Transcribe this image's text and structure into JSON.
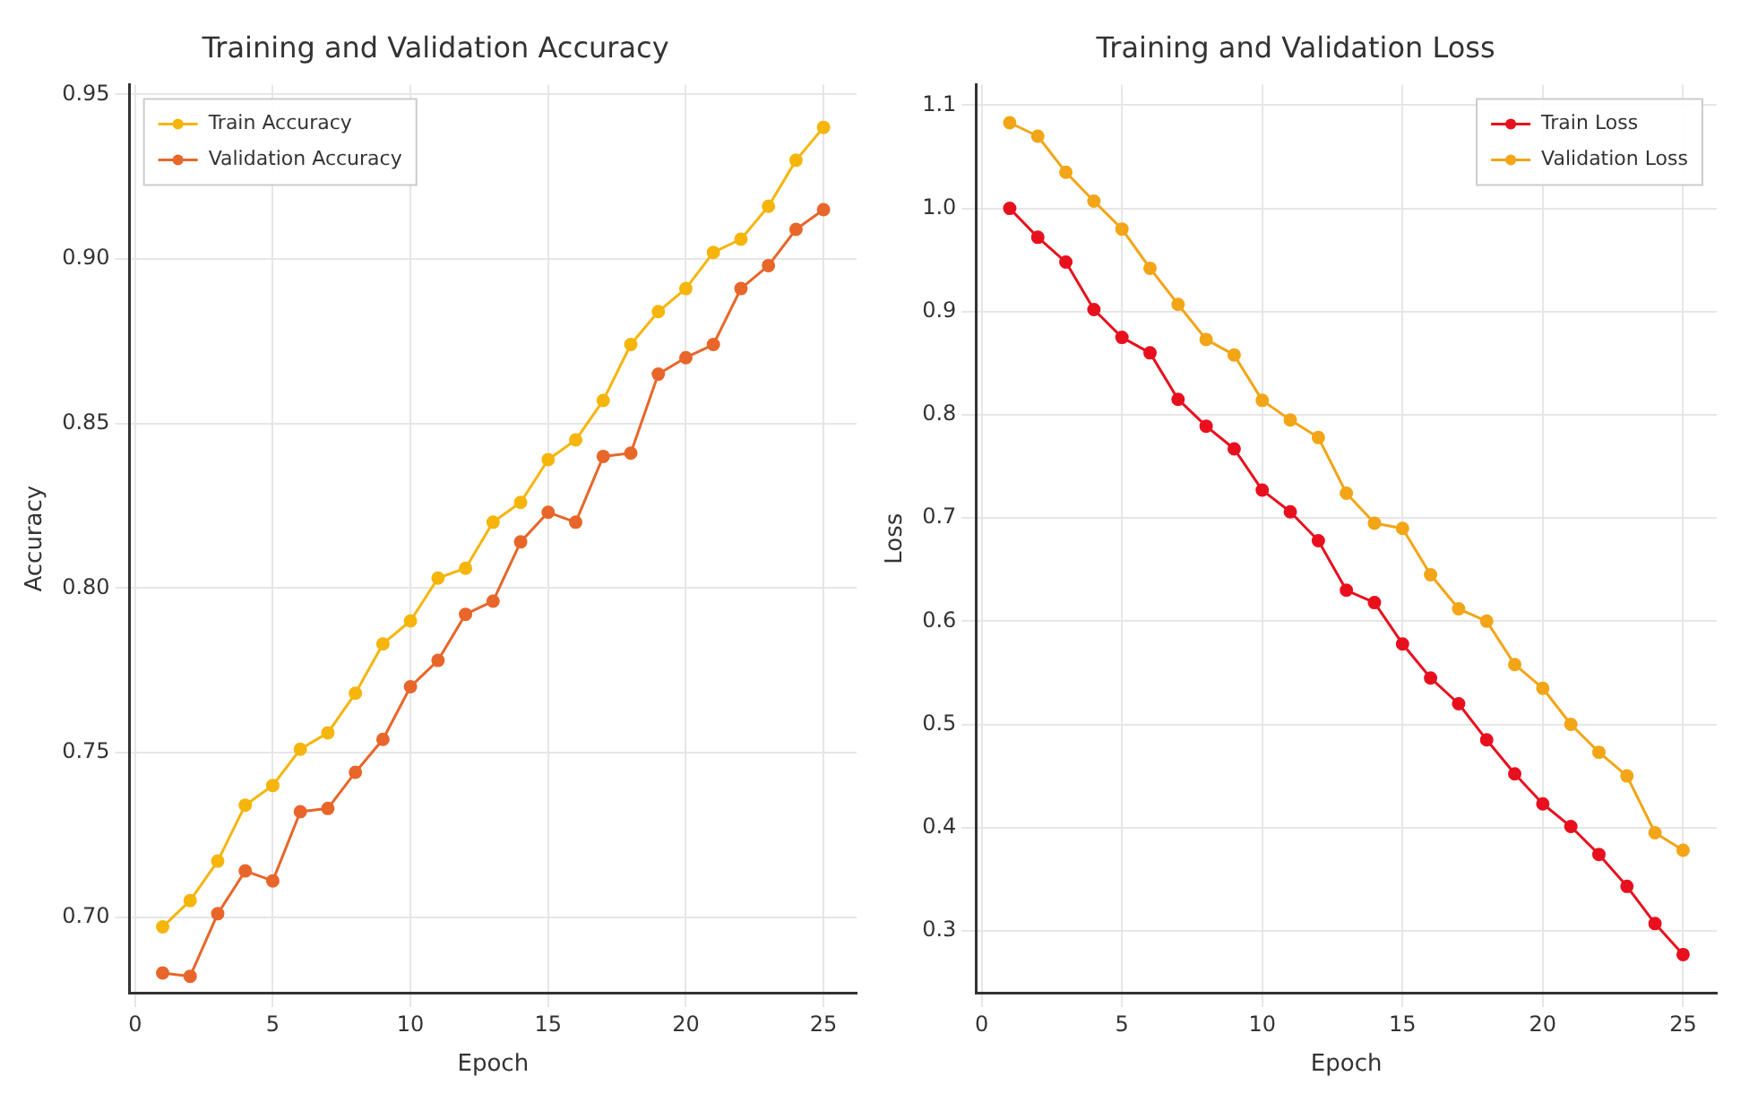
{
  "chart_data": [
    {
      "type": "line",
      "title": "Training and Validation Accuracy",
      "xlabel": "Epoch",
      "ylabel": "Accuracy",
      "x": [
        1,
        2,
        3,
        4,
        5,
        6,
        7,
        8,
        9,
        10,
        11,
        12,
        13,
        14,
        15,
        16,
        17,
        18,
        19,
        20,
        21,
        22,
        23,
        24,
        25
      ],
      "series": [
        {
          "name": "Train Accuracy",
          "color": "#f5b50a",
          "values": [
            0.697,
            0.705,
            0.717,
            0.734,
            0.74,
            0.751,
            0.756,
            0.768,
            0.783,
            0.79,
            0.803,
            0.806,
            0.82,
            0.826,
            0.839,
            0.845,
            0.857,
            0.874,
            0.884,
            0.891,
            0.902,
            0.906,
            0.916,
            0.93,
            0.94
          ]
        },
        {
          "name": "Validation Accuracy",
          "color": "#e8662a",
          "values": [
            0.683,
            0.682,
            0.701,
            0.714,
            0.711,
            0.732,
            0.733,
            0.744,
            0.754,
            0.77,
            0.778,
            0.792,
            0.796,
            0.814,
            0.823,
            0.82,
            0.84,
            0.841,
            0.865,
            0.87,
            0.874,
            0.891,
            0.898,
            0.909,
            0.915
          ]
        }
      ],
      "xlim": [
        -0.2,
        26.2
      ],
      "xticks": [
        0,
        5,
        10,
        15,
        20,
        25
      ],
      "ylim": [
        0.677,
        0.953
      ],
      "yticks": [
        {
          "value": 0.7,
          "label": "0.70"
        },
        {
          "value": 0.75,
          "label": "0.75"
        },
        {
          "value": 0.8,
          "label": "0.80"
        },
        {
          "value": 0.85,
          "label": "0.85"
        },
        {
          "value": 0.9,
          "label": "0.90"
        },
        {
          "value": 0.95,
          "label": "0.95"
        }
      ],
      "grid": true,
      "legend": "top left",
      "marker": "circle",
      "line_style": "solid"
    },
    {
      "type": "line",
      "title": "Training and Validation Loss",
      "xlabel": "Epoch",
      "ylabel": "Loss",
      "x": [
        1,
        2,
        3,
        4,
        5,
        6,
        7,
        8,
        9,
        10,
        11,
        12,
        13,
        14,
        15,
        16,
        17,
        18,
        19,
        20,
        21,
        22,
        23,
        24,
        25
      ],
      "series": [
        {
          "name": "Train Loss",
          "color": "#e8101e",
          "values": [
            1.0,
            0.972,
            0.948,
            0.902,
            0.875,
            0.86,
            0.815,
            0.789,
            0.767,
            0.727,
            0.706,
            0.678,
            0.63,
            0.618,
            0.578,
            0.545,
            0.52,
            0.485,
            0.452,
            0.423,
            0.401,
            0.374,
            0.343,
            0.307,
            0.277
          ]
        },
        {
          "name": "Validation Loss",
          "color": "#f2a516",
          "values": [
            1.083,
            1.07,
            1.035,
            1.007,
            0.98,
            0.942,
            0.907,
            0.873,
            0.858,
            0.814,
            0.795,
            0.778,
            0.724,
            0.695,
            0.69,
            0.645,
            0.612,
            0.6,
            0.558,
            0.535,
            0.5,
            0.473,
            0.45,
            0.395,
            0.378
          ]
        }
      ],
      "xlim": [
        -0.2,
        26.2
      ],
      "xticks": [
        0,
        5,
        10,
        15,
        20,
        25
      ],
      "ylim": [
        0.24,
        1.12
      ],
      "yticks": [
        {
          "value": 0.3,
          "label": "0.3"
        },
        {
          "value": 0.4,
          "label": "0.4"
        },
        {
          "value": 0.5,
          "label": "0.5"
        },
        {
          "value": 0.6,
          "label": "0.6"
        },
        {
          "value": 0.7,
          "label": "0.7"
        },
        {
          "value": 0.8,
          "label": "0.8"
        },
        {
          "value": 0.9,
          "label": "0.9"
        },
        {
          "value": 1.0,
          "label": "1.0"
        },
        {
          "value": 1.1,
          "label": "1.1"
        }
      ],
      "grid": true,
      "legend": "top right",
      "marker": "circle",
      "line_style": "solid"
    }
  ]
}
